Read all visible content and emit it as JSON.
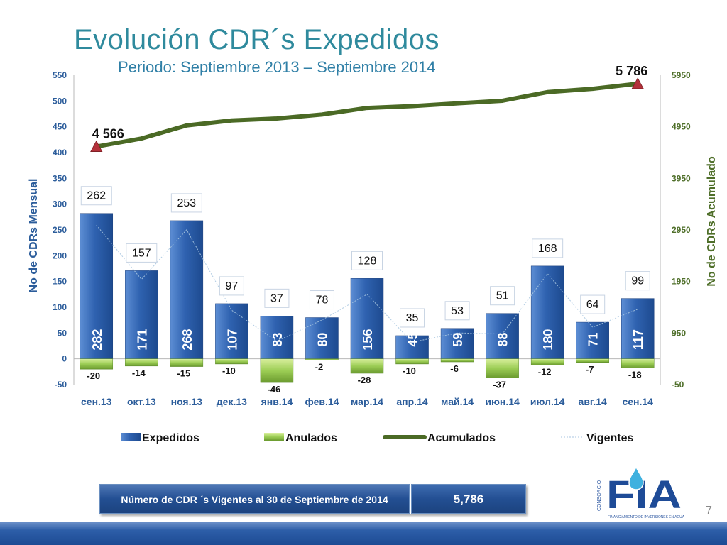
{
  "slide": {
    "title": "Evolución CDR´s Expedidos",
    "subtitle": "Periodo: Septiembre 2013 – Septiembre 2014",
    "page_number": "7"
  },
  "summary": {
    "label": "Número de CDR ´s Vigentes al 30 de Septiembre de 2014",
    "value": "5,786"
  },
  "logo": {
    "text_side": "CONSORCIO",
    "text_main": "FIA",
    "text_bottom": "FINANCIAMIENTO DE INVERSIONES EN AGUA"
  },
  "chart_data": {
    "type": "bar",
    "categories": [
      "сен.13",
      "окт.13",
      "ноя.13",
      "дек.13",
      "янв.14",
      "фев.14",
      "мар.14",
      "апр.14",
      "май.14",
      "июн.14",
      "июл.14",
      "авг.14",
      "сен.14"
    ],
    "ylabel": "No de CDRs Mensual",
    "y2label": "No de CDRs Acumulado",
    "ylim": [
      -50,
      550
    ],
    "yticks": [
      "550",
      "500",
      "450",
      "400",
      "350",
      "300",
      "250",
      "200",
      "150",
      "100",
      "50",
      "0",
      "-50"
    ],
    "y2lim": [
      -50,
      5950
    ],
    "y2ticks": [
      "5950",
      "4950",
      "3950",
      "2950",
      "1950",
      "950",
      "-50"
    ],
    "legend_position": "bottom",
    "series": [
      {
        "name": "Expedidos",
        "kind": "bar",
        "color": "#2f62b0",
        "values": [
          282,
          171,
          268,
          107,
          83,
          80,
          156,
          45,
          59,
          88,
          180,
          71,
          117
        ],
        "labels": [
          "282",
          "171",
          "268",
          "107",
          "83",
          "80",
          "156",
          "45",
          "59",
          "88",
          "180",
          "71",
          "117"
        ]
      },
      {
        "name": "Anulados",
        "kind": "bar",
        "color": "#8dc04a",
        "values": [
          -20,
          -14,
          -15,
          -10,
          -46,
          -2,
          -28,
          -10,
          -6,
          -37,
          -12,
          -7,
          -18
        ],
        "labels": [
          "-20",
          "-14",
          "-15",
          "-10",
          "-46",
          "-2",
          "-28",
          "-10",
          "-6",
          "-37",
          "-12",
          "-7",
          "-18"
        ]
      },
      {
        "name": "Acumulados",
        "kind": "line",
        "axis": "right",
        "color": "#4b6a25",
        "values": [
          4566,
          4723,
          4976,
          5073,
          5110,
          5188,
          5316,
          5351,
          5404,
          5455,
          5623,
          5687,
          5786
        ],
        "annotations": [
          {
            "index": 0,
            "text": "4 566"
          },
          {
            "index": 12,
            "text": "5 786"
          }
        ]
      },
      {
        "name": "Vigentes",
        "kind": "line",
        "axis": "left",
        "color": "#a9c6e0",
        "values": [
          262,
          157,
          253,
          97,
          37,
          78,
          128,
          35,
          53,
          51,
          168,
          64,
          99
        ],
        "labels": [
          "262",
          "157",
          "253",
          "97",
          "37",
          "78",
          "128",
          "35",
          "53",
          "51",
          "168",
          "64",
          "99"
        ]
      }
    ]
  }
}
